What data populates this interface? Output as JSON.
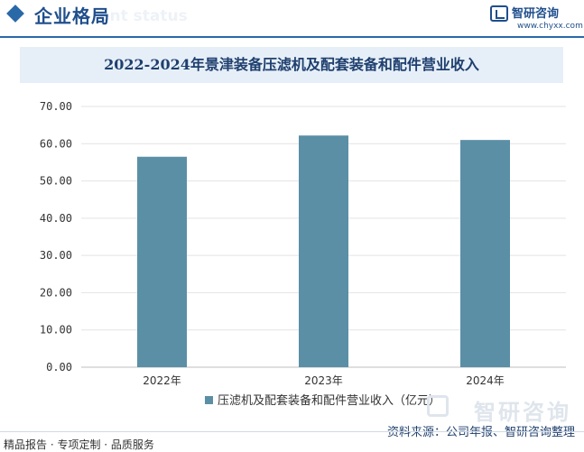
{
  "header": {
    "section_title": "企业格局",
    "section_bg_text": "ent status",
    "brand_name": "智研咨询",
    "brand_url": "www.chyxx.com",
    "brand_color": "#1f4e8c"
  },
  "chart_data": {
    "type": "bar",
    "title": "2022-2024年景津装备压滤机及配套装备和配件营业收入",
    "categories": [
      "2022年",
      "2023年",
      "2024年"
    ],
    "series": [
      {
        "name": "压滤机及配套装备和配件营业收入（亿元）",
        "values": [
          56.5,
          62.2,
          61.0
        ],
        "color": "#5b8fa6"
      }
    ],
    "ylim": [
      0,
      70
    ],
    "yticks": [
      "0.00",
      "10.00",
      "20.00",
      "30.00",
      "40.00",
      "50.00",
      "60.00",
      "70.00"
    ],
    "grid": true,
    "legend_position": "bottom"
  },
  "footer": {
    "left_text": "精品报告 · 专项定制 · 品质服务",
    "source": "资料来源：公司年报、智研咨询整理",
    "watermark": "智研咨询"
  }
}
